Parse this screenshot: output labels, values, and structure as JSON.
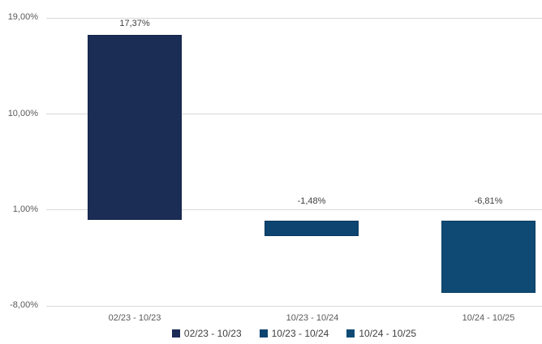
{
  "chart_data": {
    "type": "bar",
    "title": "",
    "xlabel": "",
    "ylabel": "",
    "categories": [
      "02/23 - 10/23",
      "10/23 - 10/24",
      "10/24 - 10/25"
    ],
    "series": [
      {
        "name": "02/23 - 10/23",
        "value": 17.37,
        "label": "17,37%",
        "color": "#1B2C55",
        "border": "#16254A"
      },
      {
        "name": "10/23 - 10/24",
        "value": -1.48,
        "label": "-1,48%",
        "color": "#0E4470",
        "border": "#0B3A61"
      },
      {
        "name": "10/24 - 10/25",
        "value": -6.81,
        "label": "-6,81%",
        "color": "#0F4A74",
        "border": "#0B3F64"
      }
    ],
    "legend": [
      "02/23 - 10/23",
      "10/23 - 10/24",
      "10/24 - 10/25"
    ],
    "legend_position": "bottom",
    "y_tick_values": [
      19,
      10,
      1,
      -8
    ],
    "y_tick_labels": [
      "19,00%",
      "10,00%",
      "1,00%",
      "-8,00%"
    ],
    "ylim": [
      -8,
      19
    ],
    "grid": true,
    "colors": {
      "grid": "#D9D9D9",
      "tick_text": "#595959",
      "value_text": "#404040",
      "legend_text": "#404040",
      "background": "#FFFFFF"
    }
  }
}
